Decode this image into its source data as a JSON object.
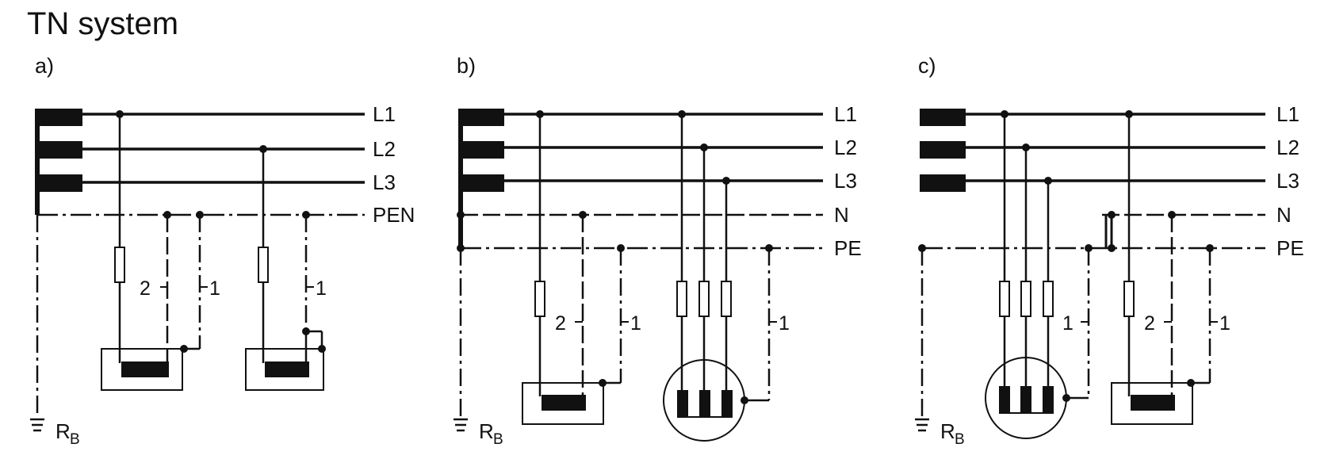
{
  "title": "TN system",
  "panels": [
    {
      "label": "a)",
      "conductors": [
        "L1",
        "L2",
        "L3",
        "PEN"
      ],
      "earth_label": "R",
      "earth_sub": "B",
      "callouts": [
        "2",
        "1",
        "1"
      ]
    },
    {
      "label": "b)",
      "conductors": [
        "L1",
        "L2",
        "L3",
        "N",
        "PE"
      ],
      "earth_label": "R",
      "earth_sub": "B",
      "callouts": [
        "2",
        "1",
        "1"
      ]
    },
    {
      "label": "c)",
      "conductors": [
        "L1",
        "L2",
        "L3",
        "N",
        "PE"
      ],
      "earth_label": "R",
      "earth_sub": "B",
      "callouts": [
        "1",
        "2",
        "1"
      ]
    }
  ],
  "colors": {
    "ink": "#111111",
    "background": "#ffffff"
  }
}
